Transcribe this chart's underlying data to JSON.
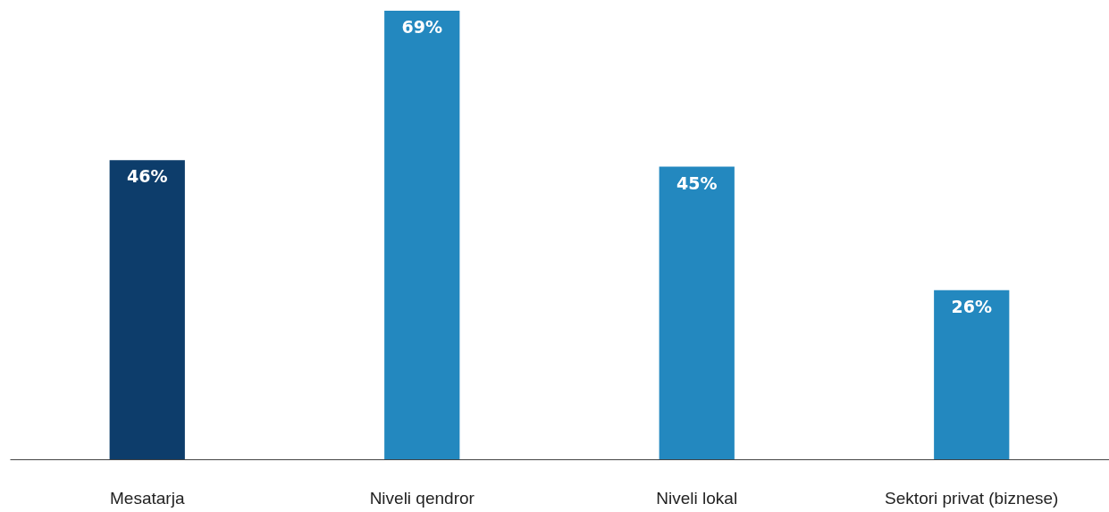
{
  "chart_data": {
    "type": "bar",
    "categories": [
      "Mesatarja",
      "Niveli qendror",
      "Niveli lokal",
      "Sektori privat (biznese)"
    ],
    "values": [
      46,
      69,
      45,
      26
    ],
    "colors": [
      "#0d3d6b",
      "#2388bf",
      "#2388bf",
      "#2388bf"
    ],
    "value_labels": [
      "46%",
      "69%",
      "45%",
      "26%"
    ]
  }
}
